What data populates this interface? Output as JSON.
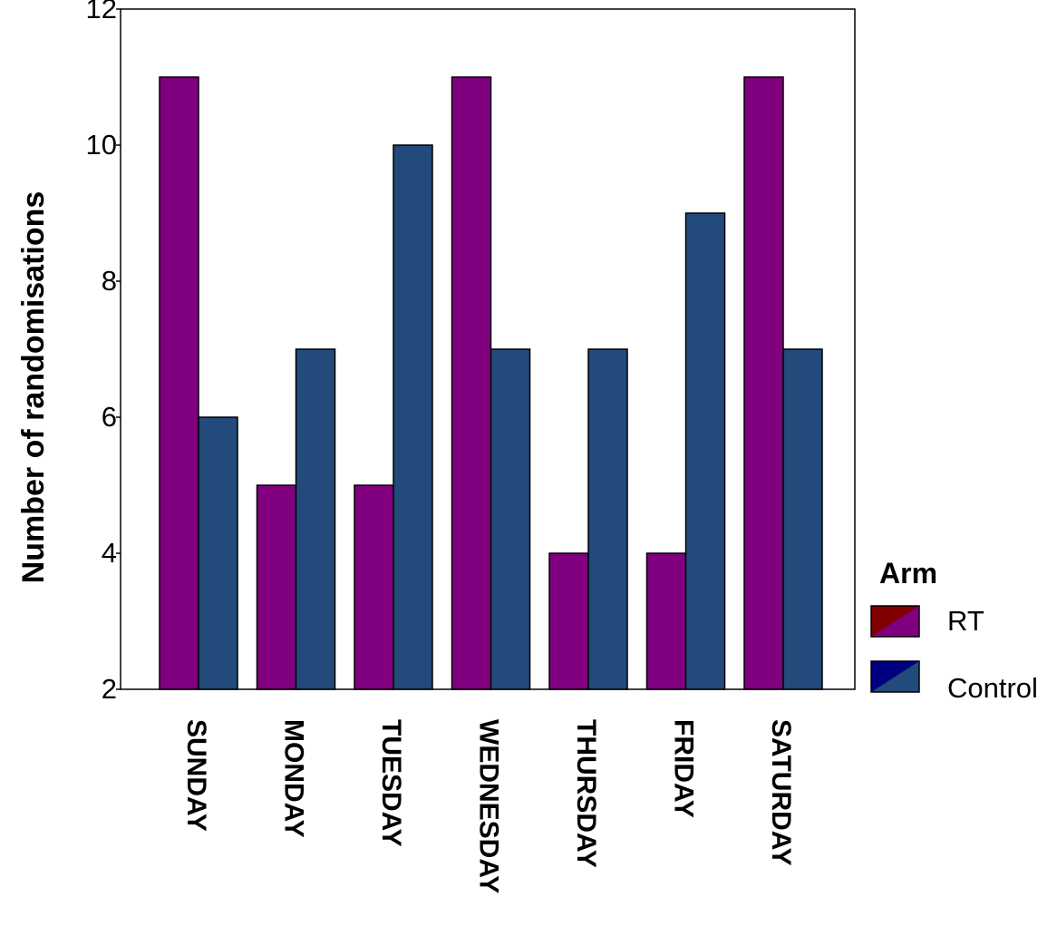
{
  "chart_data": {
    "type": "bar",
    "title": "",
    "xlabel": "",
    "ylabel": "Number of randomisations",
    "categories": [
      "SUNDAY",
      "MONDAY",
      "TUESDAY",
      "WEDNESDAY",
      "THURSDAY",
      "FRIDAY",
      "SATURDAY"
    ],
    "series": [
      {
        "name": "RT",
        "values": [
          11,
          5,
          5,
          11,
          4,
          4,
          11
        ],
        "color": "#800080"
      },
      {
        "name": "Control",
        "values": [
          6,
          7,
          10,
          7,
          7,
          9,
          7
        ],
        "color": "#224A7A"
      }
    ],
    "ylim": [
      2,
      12
    ],
    "yticks": [
      2,
      4,
      6,
      8,
      10,
      12
    ],
    "grid": false,
    "legend": {
      "title": "Arm",
      "placement": "right"
    },
    "colors": {
      "rt_legend_accent": "#800000",
      "control_legend_accent": "#000080",
      "axis": "#000000"
    }
  }
}
